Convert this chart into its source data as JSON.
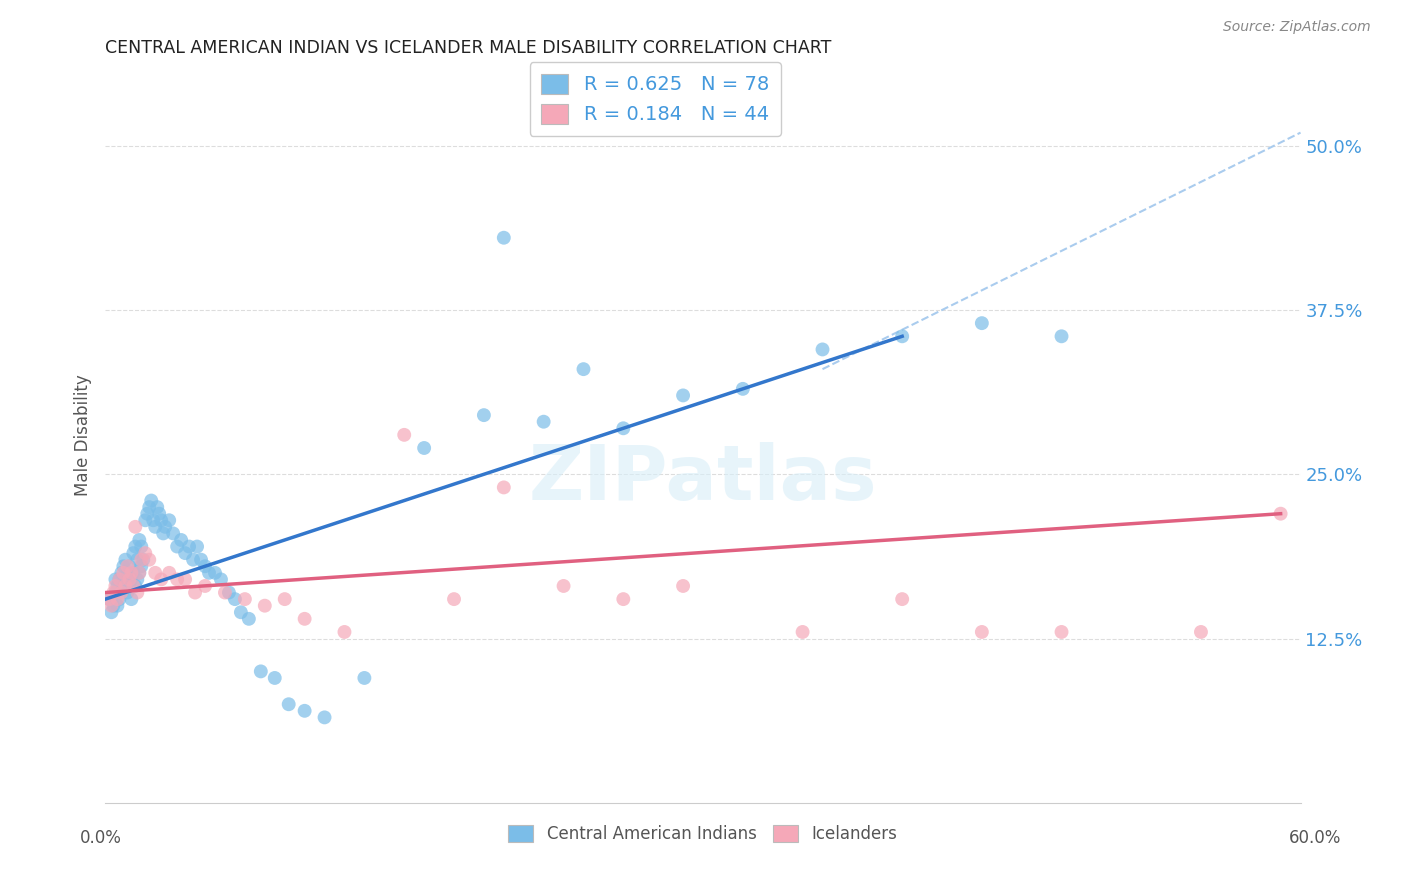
{
  "title": "CENTRAL AMERICAN INDIAN VS ICELANDER MALE DISABILITY CORRELATION CHART",
  "source": "Source: ZipAtlas.com",
  "ylabel": "Male Disability",
  "xlim": [
    0.0,
    0.6
  ],
  "ylim": [
    0.0,
    0.56
  ],
  "yticks": [
    0.125,
    0.25,
    0.375,
    0.5
  ],
  "ytick_labels": [
    "12.5%",
    "25.0%",
    "37.5%",
    "50.0%"
  ],
  "xtick_labels": [
    "0.0%",
    "60.0%"
  ],
  "background_color": "#ffffff",
  "watermark": "ZIPatlas",
  "color_blue": "#7bbde8",
  "color_pink": "#f5a8b8",
  "color_blue_text": "#4499dd",
  "color_pink_line": "#e06080",
  "color_blue_line": "#3377cc",
  "color_dash_line": "#aaccee",
  "blue_scatter_x": [
    0.002,
    0.003,
    0.004,
    0.005,
    0.005,
    0.006,
    0.006,
    0.007,
    0.007,
    0.008,
    0.008,
    0.009,
    0.009,
    0.01,
    0.01,
    0.011,
    0.011,
    0.012,
    0.012,
    0.013,
    0.013,
    0.014,
    0.014,
    0.015,
    0.015,
    0.016,
    0.016,
    0.017,
    0.017,
    0.018,
    0.018,
    0.019,
    0.02,
    0.021,
    0.022,
    0.023,
    0.024,
    0.025,
    0.026,
    0.027,
    0.028,
    0.029,
    0.03,
    0.032,
    0.034,
    0.036,
    0.038,
    0.04,
    0.042,
    0.044,
    0.046,
    0.048,
    0.05,
    0.052,
    0.055,
    0.058,
    0.062,
    0.065,
    0.068,
    0.072,
    0.078,
    0.085,
    0.092,
    0.1,
    0.11,
    0.13,
    0.16,
    0.19,
    0.22,
    0.26,
    0.29,
    0.32,
    0.36,
    0.4,
    0.44,
    0.48,
    0.2,
    0.24
  ],
  "blue_scatter_y": [
    0.155,
    0.145,
    0.15,
    0.16,
    0.17,
    0.15,
    0.165,
    0.155,
    0.17,
    0.16,
    0.175,
    0.165,
    0.18,
    0.17,
    0.185,
    0.16,
    0.175,
    0.165,
    0.18,
    0.155,
    0.17,
    0.175,
    0.19,
    0.165,
    0.195,
    0.17,
    0.185,
    0.175,
    0.2,
    0.18,
    0.195,
    0.185,
    0.215,
    0.22,
    0.225,
    0.23,
    0.215,
    0.21,
    0.225,
    0.22,
    0.215,
    0.205,
    0.21,
    0.215,
    0.205,
    0.195,
    0.2,
    0.19,
    0.195,
    0.185,
    0.195,
    0.185,
    0.18,
    0.175,
    0.175,
    0.17,
    0.16,
    0.155,
    0.145,
    0.14,
    0.1,
    0.095,
    0.075,
    0.07,
    0.065,
    0.095,
    0.27,
    0.295,
    0.29,
    0.285,
    0.31,
    0.315,
    0.345,
    0.355,
    0.365,
    0.355,
    0.43,
    0.33
  ],
  "pink_scatter_x": [
    0.002,
    0.003,
    0.004,
    0.005,
    0.006,
    0.007,
    0.008,
    0.009,
    0.01,
    0.011,
    0.012,
    0.013,
    0.014,
    0.015,
    0.016,
    0.017,
    0.018,
    0.02,
    0.022,
    0.025,
    0.028,
    0.032,
    0.036,
    0.04,
    0.045,
    0.05,
    0.06,
    0.07,
    0.08,
    0.09,
    0.1,
    0.12,
    0.15,
    0.175,
    0.2,
    0.23,
    0.26,
    0.29,
    0.35,
    0.4,
    0.44,
    0.48,
    0.55,
    0.59
  ],
  "pink_scatter_y": [
    0.155,
    0.15,
    0.16,
    0.165,
    0.155,
    0.17,
    0.16,
    0.175,
    0.165,
    0.18,
    0.17,
    0.175,
    0.165,
    0.21,
    0.16,
    0.175,
    0.185,
    0.19,
    0.185,
    0.175,
    0.17,
    0.175,
    0.17,
    0.17,
    0.16,
    0.165,
    0.16,
    0.155,
    0.15,
    0.155,
    0.14,
    0.13,
    0.28,
    0.155,
    0.24,
    0.165,
    0.155,
    0.165,
    0.13,
    0.155,
    0.13,
    0.13,
    0.13,
    0.22
  ],
  "blue_line_x": [
    0.0,
    0.4
  ],
  "blue_line_y": [
    0.155,
    0.355
  ],
  "pink_line_x": [
    0.0,
    0.59
  ],
  "pink_line_y": [
    0.16,
    0.22
  ],
  "dash_line_x": [
    0.36,
    0.6
  ],
  "dash_line_y": [
    0.33,
    0.51
  ],
  "legend1_label": "R = 0.625   N = 78",
  "legend2_label": "R = 0.184   N = 44",
  "bottom_legend1": "Central American Indians",
  "bottom_legend2": "Icelanders"
}
